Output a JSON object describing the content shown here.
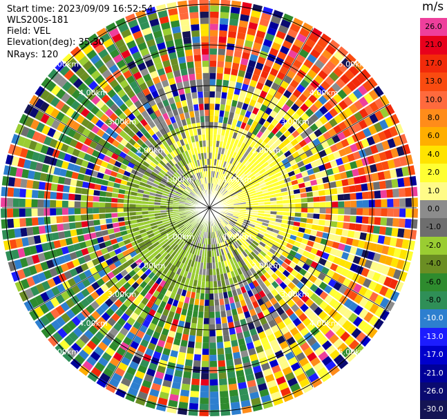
{
  "info": {
    "start_time": "Start time: 2023/09/09 16:52:54",
    "station": "WLS200s-181",
    "field": "Field: VEL",
    "elevation": "Elevation(deg): 35.30",
    "nrays": "NRays: 120"
  },
  "colorbar": {
    "unit": "m/s",
    "levels": [
      {
        "label": "26.0",
        "color": "#ee3f9c"
      },
      {
        "label": "21.0",
        "color": "#e8001c"
      },
      {
        "label": "17.0",
        "color": "#f22a0a"
      },
      {
        "label": "13.0",
        "color": "#fa4b10"
      },
      {
        "label": "10.0",
        "color": "#ff6a3d"
      },
      {
        "label": "8.0",
        "color": "#ff8c1a"
      },
      {
        "label": "6.0",
        "color": "#ffae00"
      },
      {
        "label": "4.0",
        "color": "#ffe300"
      },
      {
        "label": "2.0",
        "color": "#ffff33"
      },
      {
        "label": "1.0",
        "color": "#fffb88"
      },
      {
        "label": "0.0",
        "color": "#8c8c8c"
      },
      {
        "label": "-1.0",
        "color": "#6e6e6e"
      },
      {
        "label": "-2.0",
        "color": "#9acd32"
      },
      {
        "label": "-4.0",
        "color": "#6b8e23"
      },
      {
        "label": "-6.0",
        "color": "#2e8b2e"
      },
      {
        "label": "-8.0",
        "color": "#2f8f57"
      },
      {
        "label": "-10.0",
        "color": "#2d7fcf"
      },
      {
        "label": "-13.0",
        "color": "#1c1cff"
      },
      {
        "label": "-17.0",
        "color": "#0000cc"
      },
      {
        "label": "-21.0",
        "color": "#000099"
      },
      {
        "label": "-26.0",
        "color": "#0a0a70"
      },
      {
        "label": "-30.0",
        "color": "#141454"
      }
    ]
  },
  "chart_data": {
    "type": "heatmap",
    "projection": "polar PPI",
    "field": "VEL",
    "range_rings_km": [
      "1.00km",
      "2.00km",
      "3.00km",
      "4.00km",
      "5.00km"
    ],
    "radial_pattern": "near ranges mostly yellow (+) toward east/north and green/grey (−) toward west/south; beyond ~2 km noisy multicolor; far west/southwest dominated by blue/green (−), far northeast by orange/red (+)"
  }
}
